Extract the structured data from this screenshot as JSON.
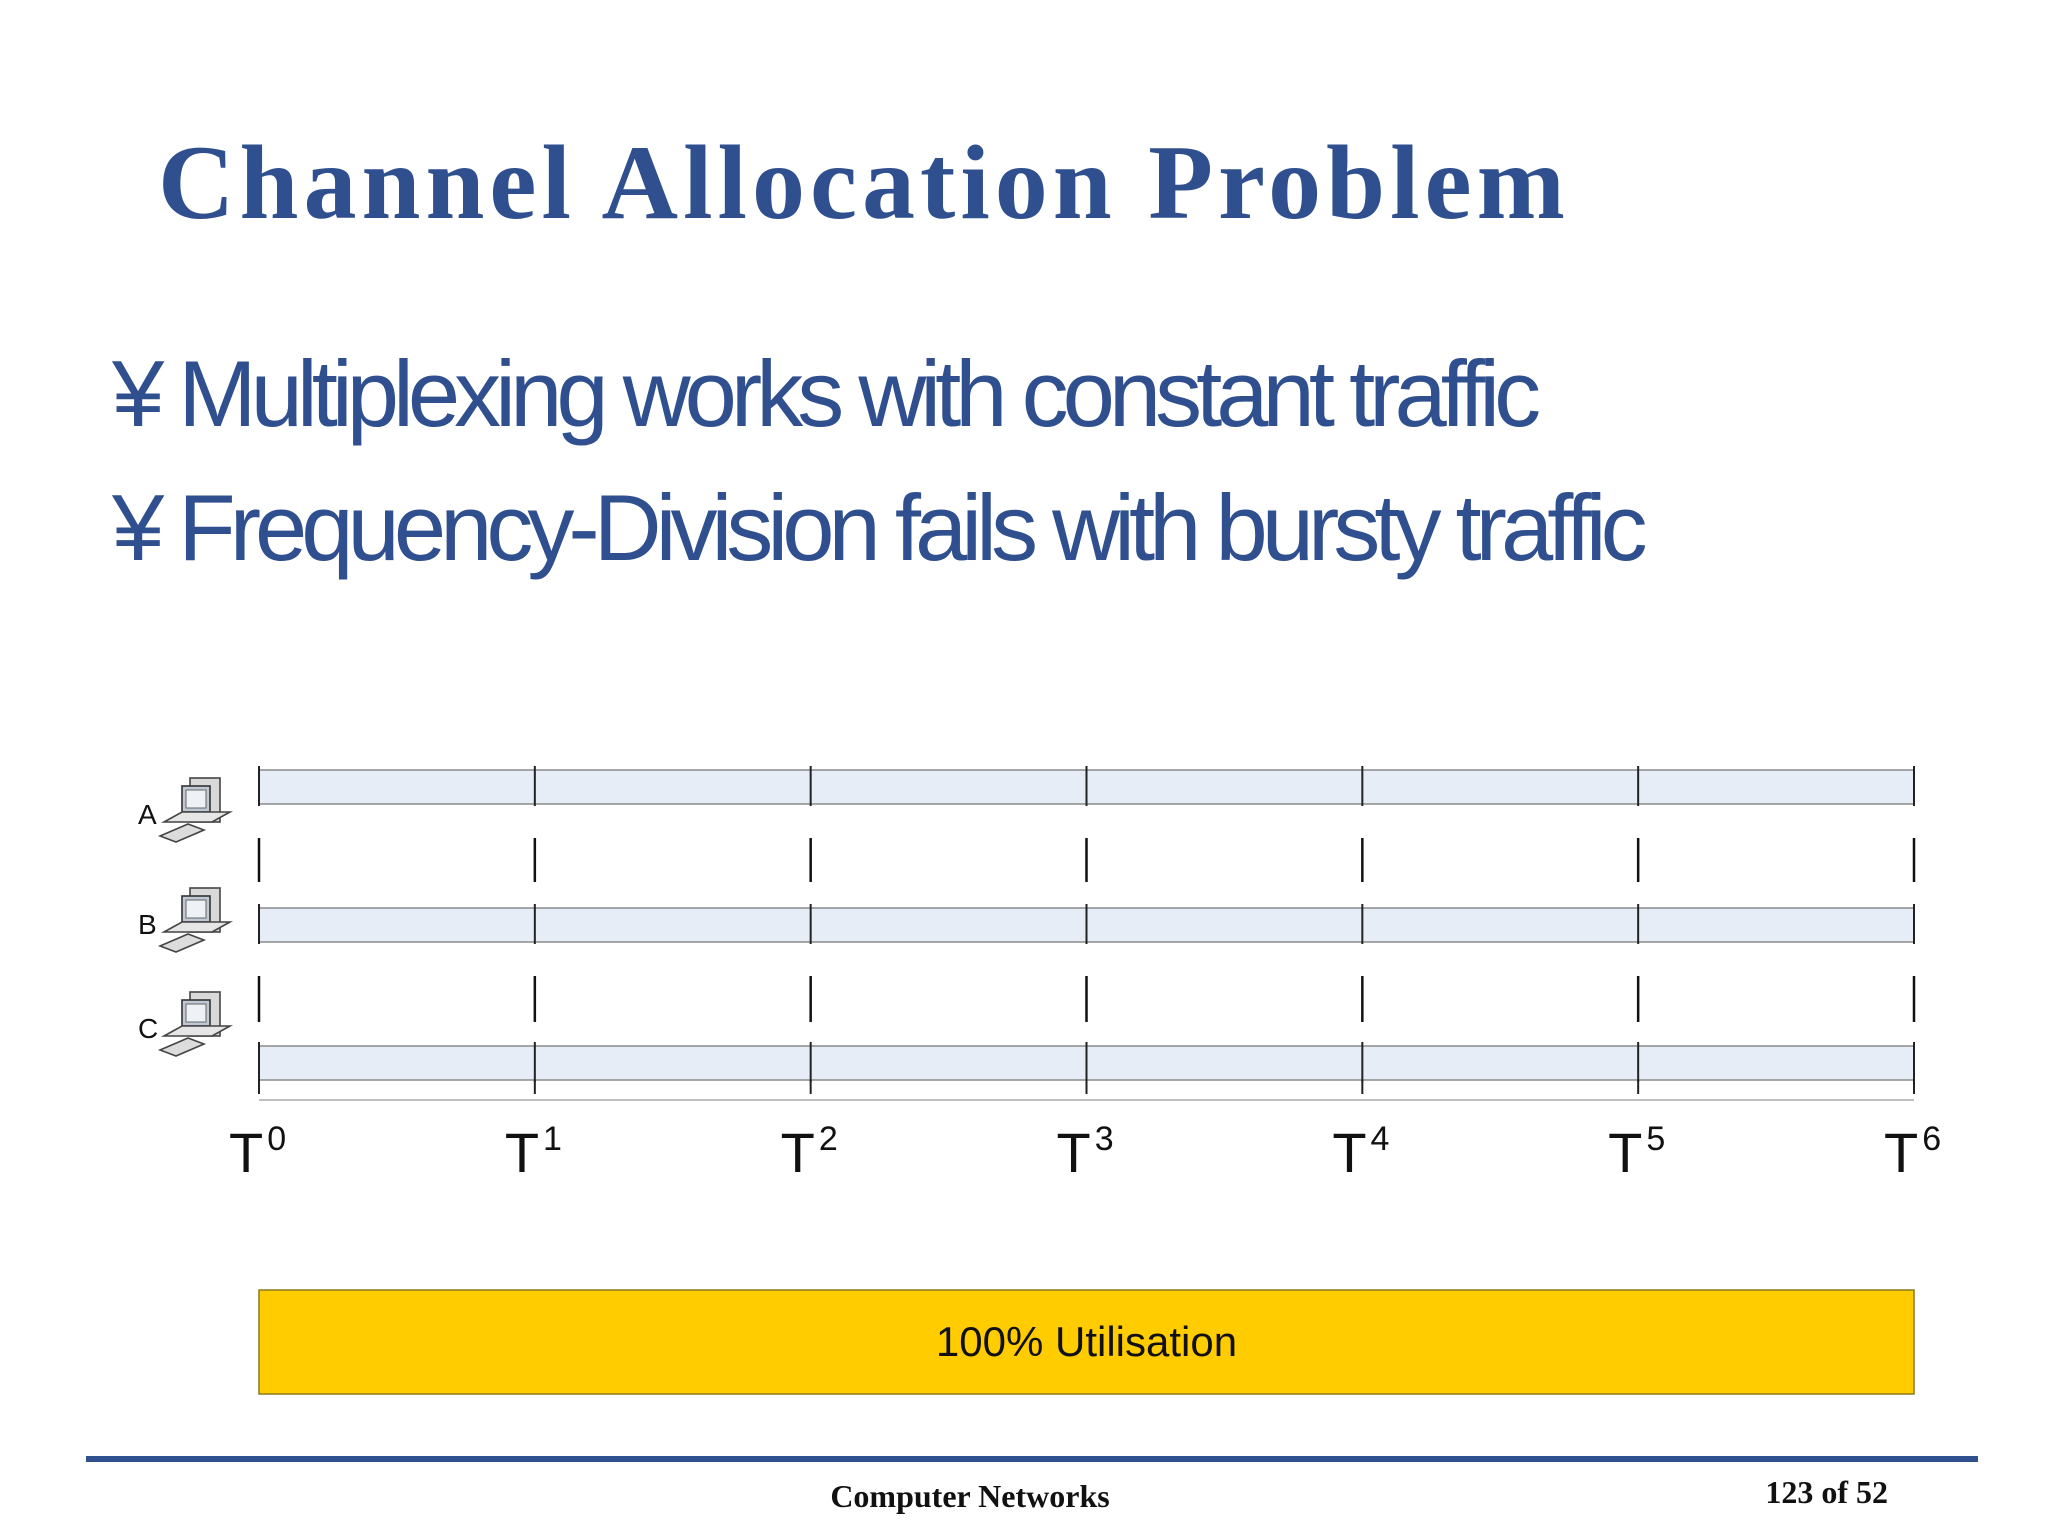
{
  "slide": {
    "title": "Channel Allocation Problem",
    "bullet_marker": "¥",
    "bullets": [
      "Multiplexing works with constant traffic",
      "Frequency-Division fails with bursty traffic"
    ]
  },
  "diagram": {
    "stations": [
      {
        "label": "A",
        "icon": "desktop-computer-icon"
      },
      {
        "label": "B",
        "icon": "desktop-computer-icon"
      },
      {
        "label": "C",
        "icon": "desktop-computer-icon"
      }
    ],
    "time_marks": [
      {
        "base": "T",
        "sup": "0"
      },
      {
        "base": "T",
        "sup": "1"
      },
      {
        "base": "T",
        "sup": "2"
      },
      {
        "base": "T",
        "sup": "3"
      },
      {
        "base": "T",
        "sup": "4"
      },
      {
        "base": "T",
        "sup": "5"
      },
      {
        "base": "T",
        "sup": "6"
      }
    ],
    "utilisation_label": "100% Utilisation",
    "colors": {
      "lane_fill": "#e6edf6",
      "lane_stroke": "#8a8a8a",
      "utilisation_fill": "#ffcc00",
      "utilisation_stroke": "#8a7a20"
    }
  },
  "footer": {
    "center": "Computer Networks",
    "page": "123 of 52"
  },
  "colors": {
    "title": "#2f4f8f",
    "footer_rule": "#2f4f8f"
  }
}
